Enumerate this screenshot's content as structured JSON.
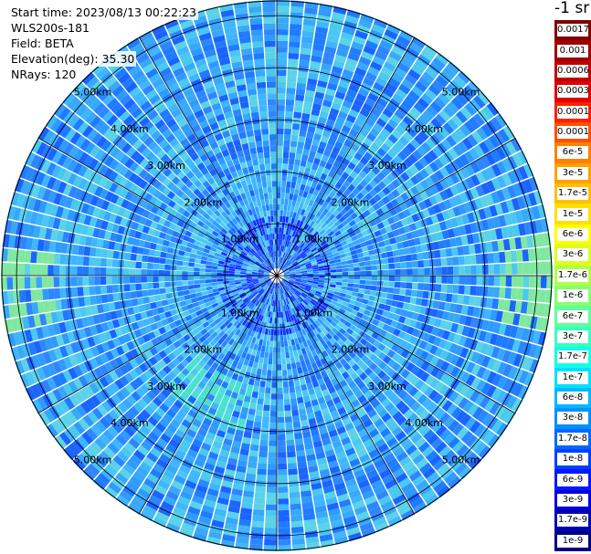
{
  "header": {
    "start_time": "Start time: 2023/08/13 00:22:23",
    "device": "WLS200s-181",
    "field": "Field: BETA",
    "elevation": "Elevation(deg): 35.30",
    "nrays": "NRays: 120"
  },
  "colorbar": {
    "unit": "-1 sr",
    "labels": [
      "0.0017",
      "0.001",
      "0.0006",
      "0.0003",
      "0.00017",
      "0.0001",
      "6e-5",
      "3e-5",
      "1.7e-5",
      "1e-5",
      "6e-6",
      "3e-6",
      "1.7e-6",
      "1e-6",
      "6e-7",
      "3e-7",
      "1.7e-7",
      "1e-7",
      "6e-8",
      "3e-8",
      "1.7e-8",
      "1e-8",
      "6e-9",
      "3e-9",
      "1.7e-9",
      "1e-9"
    ],
    "colors": [
      "#800000",
      "#a00000",
      "#c00000",
      "#e00000",
      "#ff2000",
      "#ff5000",
      "#ff8000",
      "#ffa000",
      "#ffc000",
      "#ffe000",
      "#ffff00",
      "#d8ff20",
      "#b0ff48",
      "#88ff70",
      "#60ff98",
      "#38ffc0",
      "#10ffe8",
      "#00e0ff",
      "#00b8ff",
      "#0090ff",
      "#0068ff",
      "#0040ff",
      "#0018ff",
      "#0000e0",
      "#0000b0",
      "#000080"
    ]
  },
  "rings": [
    {
      "label": "1.00km",
      "km": 1
    },
    {
      "label": "2.00km",
      "km": 2
    },
    {
      "label": "3.00km",
      "km": 3
    },
    {
      "label": "4.00km",
      "km": 4
    },
    {
      "label": "5.00km",
      "km": 5
    }
  ],
  "ppi": {
    "max_range_km": 5.3,
    "rays": 120,
    "spokes": 12
  }
}
